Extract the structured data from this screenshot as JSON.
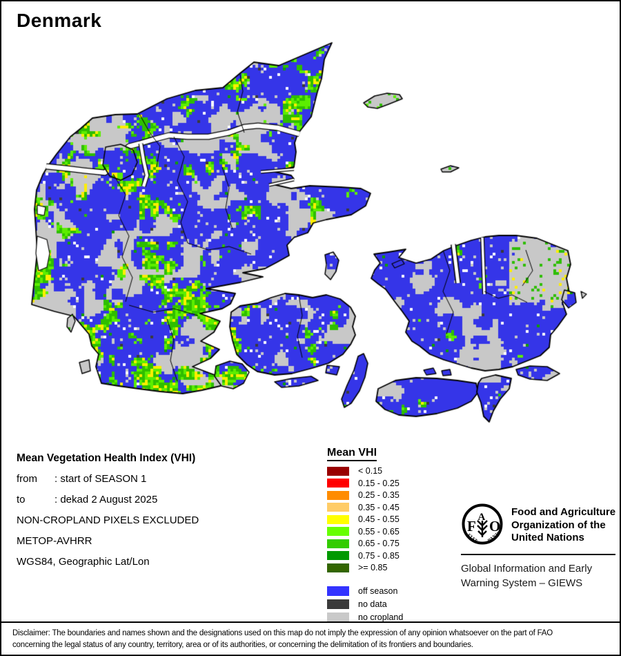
{
  "title": "Denmark",
  "info": {
    "heading": "Mean Vegetation Health Index (VHI)",
    "rows": [
      {
        "label": "from",
        "value": ": start of SEASON 1"
      },
      {
        "label": "to",
        "value": ": dekad 2 August 2025"
      }
    ],
    "lines": [
      "NON-CROPLAND PIXELS EXCLUDED",
      "METOP-AVHRR",
      "WGS84, Geographic Lat/Lon"
    ]
  },
  "legend": {
    "title": "Mean VHI",
    "classes": [
      {
        "color": "#990000",
        "label": "< 0.15"
      },
      {
        "color": "#FF0000",
        "label": "0.15 - 0.25"
      },
      {
        "color": "#FF8C00",
        "label": "0.25 - 0.35"
      },
      {
        "color": "#FFCC66",
        "label": "0.35 - 0.45"
      },
      {
        "color": "#FFFF00",
        "label": "0.45 - 0.55"
      },
      {
        "color": "#66FF00",
        "label": "0.55 - 0.65"
      },
      {
        "color": "#33CC00",
        "label": "0.65 - 0.75"
      },
      {
        "color": "#009900",
        "label": "0.75 - 0.85"
      },
      {
        "color": "#336600",
        "label": ">= 0.85"
      }
    ],
    "extra": [
      {
        "color": "#3333FF",
        "label": "off season"
      },
      {
        "color": "#3A3A3A",
        "label": "no data"
      },
      {
        "color": "#C9C9C9",
        "label": "no cropland"
      }
    ]
  },
  "map": {
    "palette": {
      "blue": "#3535E8",
      "gray": "#C8C8C8",
      "green_bright": "#5CEE00",
      "green_mid": "#2EBE00",
      "green_dark": "#0F9C00",
      "yellow": "#FFEE00",
      "white": "#FFFFFF",
      "dark": "#3A3A3A"
    }
  },
  "fao": {
    "logo_letters": {
      "f": "F",
      "a": "A",
      "o": "O"
    },
    "logo_motto_left": "FIAT",
    "logo_motto_right": "PANIS",
    "org_lines": [
      "Food and Agriculture",
      "Organization of the",
      "United Nations"
    ],
    "giews_lines": [
      "Global Information and Early",
      "Warning System – GIEWS"
    ]
  },
  "disclaimer": {
    "line1": "Disclaimer: The boundaries and names shown and the designations used on this map do not imply the expression of any opinion whatsoever on the part of FAO",
    "line2": "concerning the legal status of any country, territory, area or of its authorities, or concerning the delimitation of its frontiers and boundaries."
  }
}
